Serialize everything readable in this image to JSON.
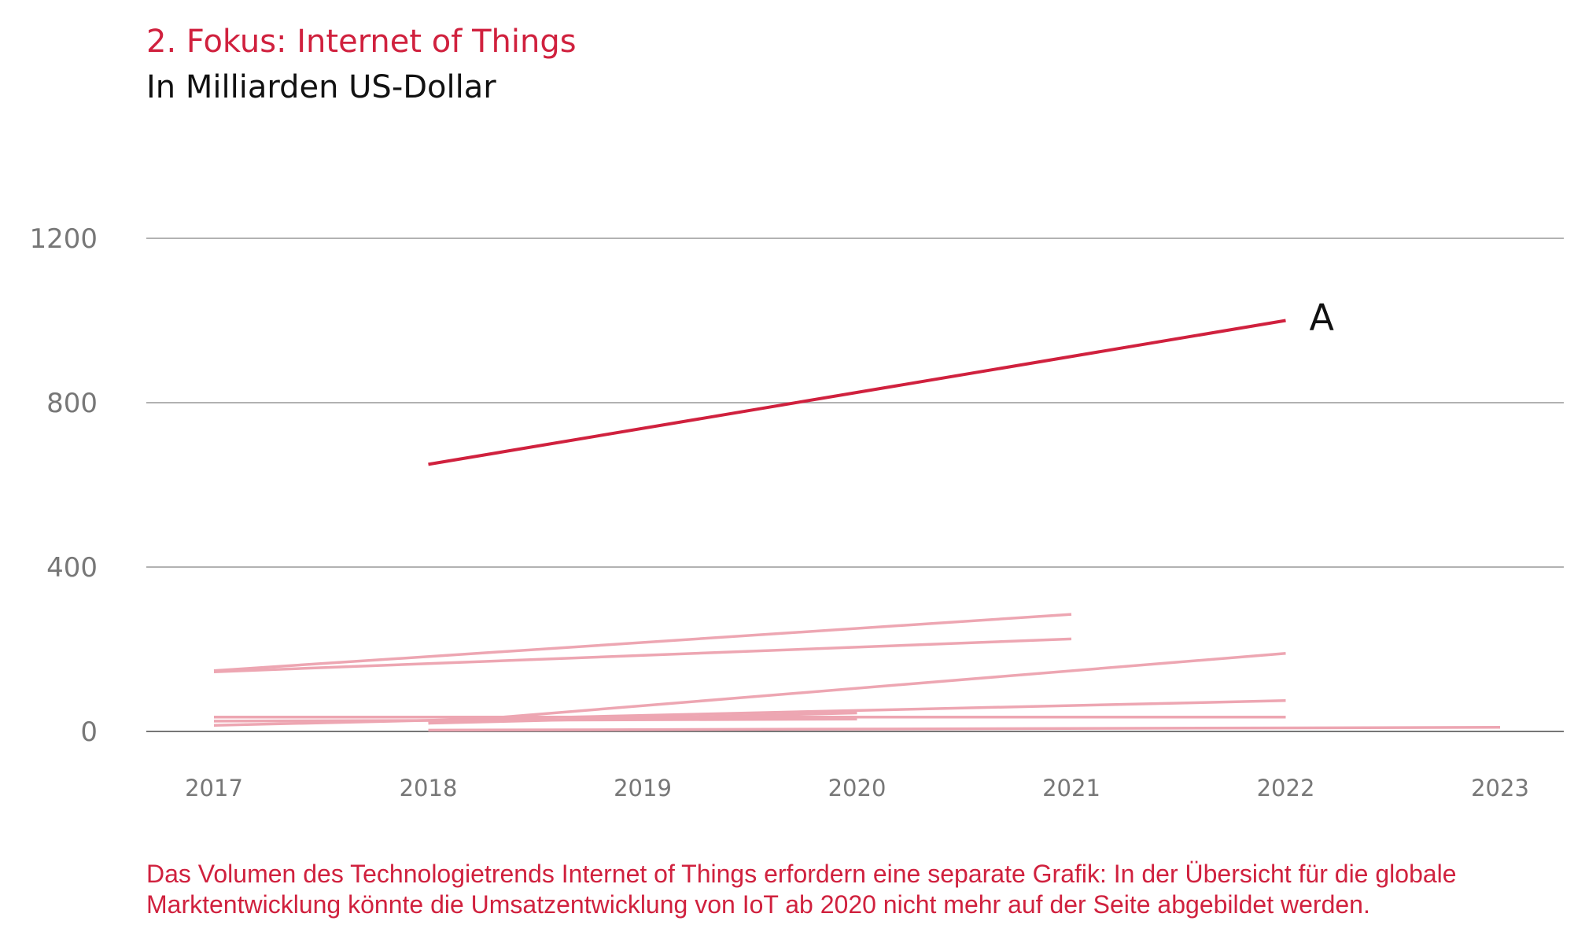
{
  "header": {
    "title": "2. Fokus: Internet of Things",
    "subtitle": "In Milliarden US-Dollar"
  },
  "caption": "Das Volumen des Technologietrends Internet of Things erfordern eine separate Grafik: In der Übersicht für die globale Marktentwicklung könnte die Umsatzentwicklung von IoT ab 2020 nicht mehr auf der Seite abgebildet werden.",
  "colors": {
    "highlight": "#d0213e",
    "muted": "#eda6b2",
    "grid": "#999999",
    "tick_text": "#777777"
  },
  "chart_data": {
    "type": "line",
    "title": "2. Fokus: Internet of Things",
    "subtitle": "In Milliarden US-Dollar",
    "xlabel": "",
    "ylabel": "",
    "x": [
      "2017",
      "2018",
      "2019",
      "2020",
      "2021",
      "2022",
      "2023"
    ],
    "ylim": [
      0,
      1200
    ],
    "yticks": [
      "0",
      "400",
      "800",
      "1200"
    ],
    "grid": true,
    "series": [
      {
        "name": "A",
        "highlight": true,
        "x": [
          2018,
          2022
        ],
        "values": [
          650,
          1000
        ]
      },
      {
        "highlight": false,
        "x": [
          2017,
          2021
        ],
        "values": [
          148,
          285
        ]
      },
      {
        "highlight": false,
        "x": [
          2017,
          2021
        ],
        "values": [
          145,
          225
        ]
      },
      {
        "highlight": false,
        "x": [
          2018,
          2022
        ],
        "values": [
          20,
          190
        ]
      },
      {
        "highlight": false,
        "x": [
          2017,
          2022
        ],
        "values": [
          15,
          75
        ]
      },
      {
        "highlight": false,
        "x": [
          2017,
          2022
        ],
        "values": [
          35,
          35
        ]
      },
      {
        "highlight": false,
        "x": [
          2017,
          2020
        ],
        "values": [
          25,
          30
        ]
      },
      {
        "highlight": false,
        "x": [
          2018,
          2020
        ],
        "values": [
          20,
          45
        ]
      },
      {
        "highlight": false,
        "x": [
          2018,
          2023
        ],
        "values": [
          3,
          10
        ]
      }
    ]
  }
}
